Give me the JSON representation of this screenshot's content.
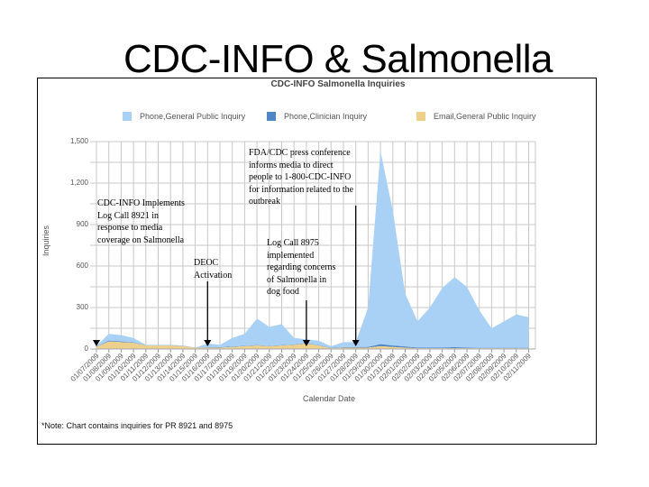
{
  "slide": {
    "title": "CDC-INFO & Salmonella"
  },
  "chart": {
    "title": "CDC-INFO Salmonella Inquiries",
    "legend": [
      {
        "label": "Phone,General Public Inquiry",
        "color": "#a8d1f5"
      },
      {
        "label": "Phone,Clinician Inquiry",
        "color": "#4f86c6"
      },
      {
        "label": "Email,General Public Inquiry",
        "color": "#ecd08c"
      }
    ],
    "y_axis_label": "Inquiries",
    "x_axis_label": "Calendar Date",
    "y_ticks": [
      "1,500",
      "1,200",
      "900",
      "600",
      "300",
      "0"
    ],
    "note": "*Note: Chart contains inquiries for PR 8921 and 8975"
  },
  "annotations": [
    {
      "id": "implements-8921",
      "text": "CDC-INFO Implements\nLog Call 8921 in\nresponse to media\ncoverage on Salmonella",
      "date": "01/07/2009"
    },
    {
      "id": "eoc-activation",
      "text": "DEOC\nActivation",
      "date": "01/16/2009"
    },
    {
      "id": "log-8975",
      "text": "Log Call 8975\nimplemented\nregarding concerns\nof Salmonella in\ndog food",
      "date": "01/24/2009"
    },
    {
      "id": "press-conference",
      "text": "FDA/CDC press conference\ninforms media to direct\npeople to 1-800-CDC-INFO\nfor information related to the\noutbreak",
      "date": "01/28/2009"
    }
  ],
  "chart_data": {
    "type": "area",
    "title": "CDC-INFO Salmonella Inquiries",
    "xlabel": "Calendar Date",
    "ylabel": "Inquiries",
    "ylim": [
      0,
      1500
    ],
    "grid": true,
    "legend_position": "top",
    "stacked": true,
    "categories": [
      "01/07/2009",
      "01/08/2009",
      "01/09/2009",
      "01/10/2009",
      "01/11/2009",
      "01/12/2009",
      "01/13/2009",
      "01/14/2009",
      "01/15/2009",
      "01/16/2009",
      "01/17/2009",
      "01/18/2009",
      "01/19/2009",
      "01/20/2009",
      "01/21/2009",
      "01/22/2009",
      "01/23/2009",
      "01/24/2009",
      "01/25/2009",
      "01/26/2009",
      "01/27/2009",
      "01/28/2009",
      "01/29/2009",
      "01/30/2009",
      "01/31/2009",
      "02/01/2009",
      "02/02/2009",
      "02/03/2009",
      "02/04/2009",
      "02/05/2009",
      "02/06/2009",
      "02/07/2009",
      "02/08/2009",
      "02/09/2009",
      "02/10/2009",
      "02/11/2009"
    ],
    "series": [
      {
        "name": "Email,General Public Inquiry",
        "color": "#ecd08c",
        "values": [
          15,
          55,
          50,
          45,
          25,
          25,
          25,
          20,
          8,
          10,
          10,
          15,
          20,
          25,
          20,
          25,
          30,
          40,
          25,
          5,
          10,
          10,
          10,
          20,
          15,
          10,
          5,
          5,
          5,
          5,
          5,
          5,
          5,
          5,
          5,
          5
        ]
      },
      {
        "name": "Phone,Clinician Inquiry",
        "color": "#4f86c6",
        "values": [
          2,
          5,
          5,
          3,
          2,
          2,
          2,
          2,
          2,
          2,
          2,
          3,
          3,
          3,
          3,
          3,
          3,
          3,
          3,
          2,
          3,
          3,
          5,
          15,
          10,
          8,
          5,
          5,
          5,
          8,
          5,
          3,
          3,
          3,
          3,
          3
        ]
      },
      {
        "name": "Phone,General Public Inquiry",
        "color": "#a8d1f5",
        "values": [
          5,
          50,
          45,
          32,
          3,
          3,
          3,
          3,
          0,
          28,
          18,
          62,
          87,
          192,
          137,
          152,
          47,
          27,
          32,
          13,
          37,
          37,
          285,
          1395,
          975,
          382,
          190,
          290,
          430,
          507,
          440,
          272,
          142,
          192,
          242,
          222
        ]
      }
    ]
  }
}
